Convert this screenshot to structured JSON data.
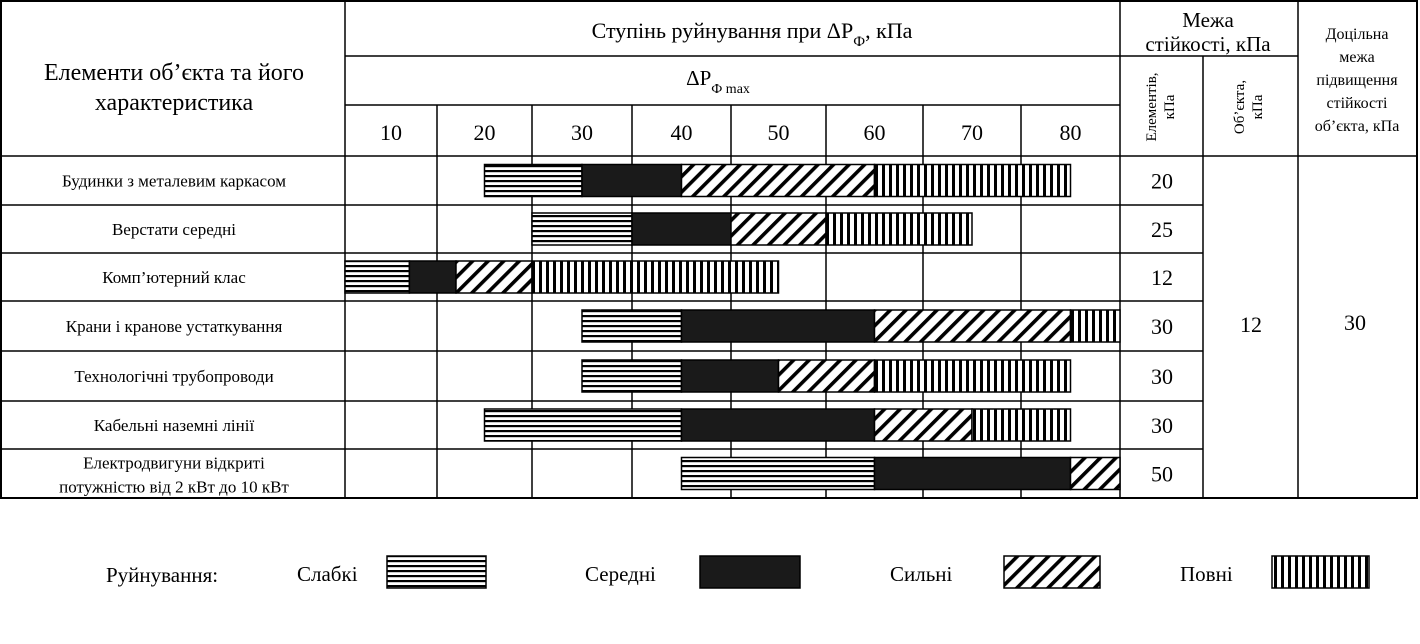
{
  "header": {
    "elements_title_line1": "Елементи об’єкта та його",
    "elements_title_line2": "характеристика",
    "degree_title": "Ступінь руйнування при ΔР",
    "degree_title_sub": "Ф",
    "degree_title_unit": ", кПа",
    "delta_p": "ΔР",
    "delta_p_sub": "Ф max",
    "limit_title_line1": "Межа",
    "limit_title_line2": "стійкості, кПа",
    "col_elements_line1": "Елементів,",
    "col_elements_line2": "кПа",
    "col_object_line1": "Об’єкта,",
    "col_object_line2": "кПа",
    "target_title_lines": [
      "Доцільна",
      "межа",
      "підвищення",
      "стійкості",
      "об’єкта, кПа"
    ]
  },
  "legend": {
    "title": "Руйнування:",
    "items": [
      {
        "key": "weak",
        "label": "Слабкі"
      },
      {
        "key": "medium",
        "label": "Середні"
      },
      {
        "key": "strong",
        "label": "Сильні"
      },
      {
        "key": "full",
        "label": "Повні"
      }
    ]
  },
  "chart_data": {
    "type": "bar",
    "title": "Ступінь руйнування при ΔРФ, кПа",
    "xlabel": "ΔРФ max",
    "x_ticks": [
      "10",
      "20",
      "30",
      "40",
      "50",
      "60",
      "70",
      "80"
    ],
    "xlim": [
      5,
      85
    ],
    "series_names": [
      "Слабкі",
      "Середні",
      "Сильні",
      "Повні"
    ],
    "rows": [
      {
        "label_lines": [
          "Будинки з металевим каркасом"
        ],
        "element_limit": "20",
        "segments": [
          {
            "degree": "weak",
            "from": 20,
            "to": 30
          },
          {
            "degree": "medium",
            "from": 30,
            "to": 40
          },
          {
            "degree": "strong",
            "from": 40,
            "to": 60
          },
          {
            "degree": "full",
            "from": 60,
            "to": 80
          }
        ]
      },
      {
        "label_lines": [
          "Верстати середні"
        ],
        "element_limit": "25",
        "segments": [
          {
            "degree": "weak",
            "from": 25,
            "to": 35
          },
          {
            "degree": "medium",
            "from": 35,
            "to": 45
          },
          {
            "degree": "strong",
            "from": 45,
            "to": 55
          },
          {
            "degree": "full",
            "from": 55,
            "to": 70
          }
        ]
      },
      {
        "label_lines": [
          "Комп’ютерний клас"
        ],
        "element_limit": "12",
        "segments": [
          {
            "degree": "weak",
            "from": 5,
            "to": 12
          },
          {
            "degree": "medium",
            "from": 12,
            "to": 17
          },
          {
            "degree": "strong",
            "from": 17,
            "to": 25
          },
          {
            "degree": "full",
            "from": 25,
            "to": 50
          }
        ]
      },
      {
        "label_lines": [
          "Крани і кранове устаткування"
        ],
        "element_limit": "30",
        "segments": [
          {
            "degree": "weak",
            "from": 30,
            "to": 40
          },
          {
            "degree": "medium",
            "from": 40,
            "to": 60
          },
          {
            "degree": "strong",
            "from": 60,
            "to": 80
          },
          {
            "degree": "full",
            "from": 80,
            "to": 90
          }
        ]
      },
      {
        "label_lines": [
          "Технологічні трубопроводи"
        ],
        "element_limit": "30",
        "segments": [
          {
            "degree": "weak",
            "from": 30,
            "to": 40
          },
          {
            "degree": "medium",
            "from": 40,
            "to": 50
          },
          {
            "degree": "strong",
            "from": 50,
            "to": 60
          },
          {
            "degree": "full",
            "from": 60,
            "to": 80
          }
        ]
      },
      {
        "label_lines": [
          "Кабельні наземні лінії"
        ],
        "element_limit": "30",
        "segments": [
          {
            "degree": "weak",
            "from": 20,
            "to": 40
          },
          {
            "degree": "medium",
            "from": 40,
            "to": 60
          },
          {
            "degree": "strong",
            "from": 60,
            "to": 70
          },
          {
            "degree": "full",
            "from": 70,
            "to": 80
          }
        ]
      },
      {
        "label_lines": [
          "Електродвигуни відкриті",
          "потужністю від 2 кВт до 10 кВт"
        ],
        "element_limit": "50",
        "segments": [
          {
            "degree": "weak",
            "from": 40,
            "to": 60
          },
          {
            "degree": "medium",
            "from": 60,
            "to": 80
          },
          {
            "degree": "strong",
            "from": 80,
            "to": 90
          }
        ]
      }
    ],
    "object_limit": "12",
    "target_limit": "30"
  }
}
